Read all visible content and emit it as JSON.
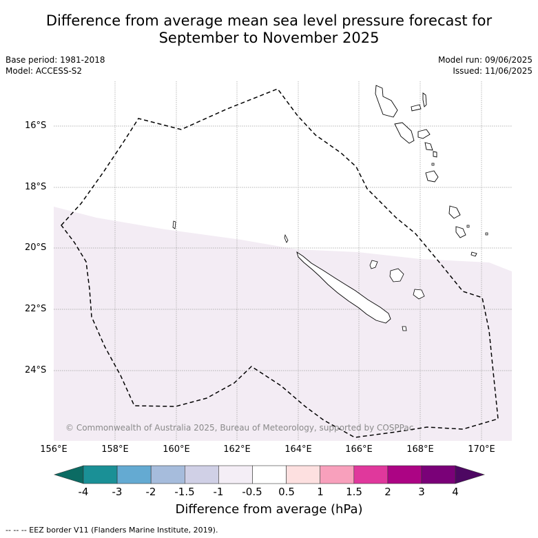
{
  "title": {
    "line1": "Difference from average mean sea level pressure forecast for",
    "line2": "September to November 2025"
  },
  "meta": {
    "base_period": "Base period: 1981-2018",
    "model": "Model: ACCESS-S2",
    "model_run": "Model run: 09/06/2025",
    "issued": "Issued: 11/06/2025"
  },
  "map": {
    "lat_ticks": [
      "16°S",
      "18°S",
      "20°S",
      "22°S",
      "24°S"
    ],
    "lon_ticks": [
      "156°E",
      "158°E",
      "160°E",
      "162°E",
      "164°E",
      "166°E",
      "168°E",
      "170°E"
    ],
    "copyright": "© Commonwealth of Australia 2025, Bureau of Meteorology, supported by COSPPac",
    "anomaly_fill_color": "#f3ecf4",
    "coastline_color": "#000000",
    "eez_line_style": "dashed"
  },
  "colorbar": {
    "labels": [
      "-4",
      "-3",
      "-2",
      "-1.5",
      "-1",
      "-0.5",
      "0.5",
      "1",
      "1.5",
      "2",
      "3",
      "4"
    ],
    "colors": [
      "#1a9096",
      "#64aad2",
      "#a6bcdc",
      "#d0d0e6",
      "#f4eef6",
      "#ffffff",
      "#fde0e0",
      "#f8a0bc",
      "#e0389c",
      "#ac0484",
      "#7a0178"
    ],
    "under_color": "#0b6b63",
    "over_color": "#4d0762",
    "title": "Difference from average (hPa)"
  },
  "footnote": "-- -- -- EEZ border V11 (Flanders Marine Institute, 2019)."
}
